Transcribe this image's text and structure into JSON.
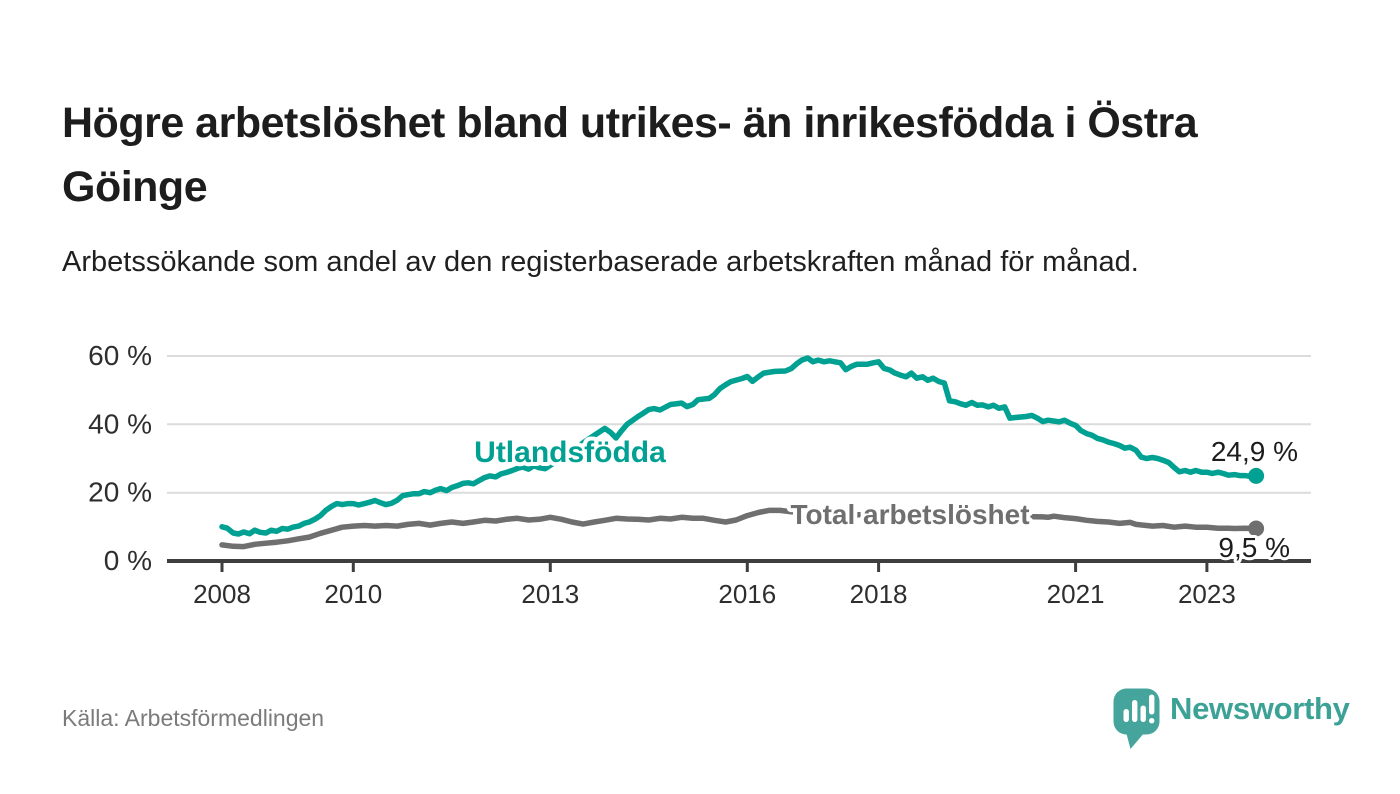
{
  "header": {
    "title": "Högre arbetslöshet bland utrikes- än inrikesfödda i Östra Göinge",
    "subtitle": "Arbetssökande som andel av den registerbaserade arbetskraften månad för månad."
  },
  "footer": {
    "source": "Källa: Arbetsförmedlingen",
    "brand": "Newsworthy"
  },
  "colors": {
    "foreign_born_line": "#00a192",
    "total_line": "#6f6f6f",
    "brand_teal": "#45a59c",
    "grid": "#dcdcdc",
    "axis": "#3e3e3e"
  },
  "chart_data": {
    "type": "line",
    "title": "Högre arbetslöshet bland utrikes- än inrikesfödda i Östra Göinge",
    "subtitle": "Arbetssökande som andel av den registerbaserade arbetskraften månad för månad.",
    "source": "Källa: Arbetsförmedlingen",
    "grid": true,
    "legend_position": "inline-labels",
    "x_axis": {
      "ticks": [
        2008,
        2010,
        2013,
        2016,
        2018,
        2021,
        2023
      ],
      "tick_labels": [
        "2008",
        "2010",
        "2013",
        "2016",
        "2018",
        "2021",
        "2023"
      ],
      "range_years": [
        2007.2,
        2024.6
      ]
    },
    "y_axis": {
      "ticks": [
        0,
        20,
        40,
        60
      ],
      "tick_labels": [
        "0 %",
        "20 %",
        "40 %",
        "60 %"
      ],
      "range": [
        0,
        62
      ],
      "unit": "%"
    },
    "series": [
      {
        "name": "Utlandsfödda",
        "color": "#00a192",
        "end_value": 24.9,
        "end_label": "24,9 %",
        "points": [
          [
            2008.0,
            10.0
          ],
          [
            2008.08,
            9.6
          ],
          [
            2008.17,
            8.2
          ],
          [
            2008.25,
            7.9
          ],
          [
            2008.33,
            8.5
          ],
          [
            2008.42,
            8.0
          ],
          [
            2008.5,
            9.0
          ],
          [
            2008.58,
            8.4
          ],
          [
            2008.67,
            8.2
          ],
          [
            2008.75,
            9.0
          ],
          [
            2008.83,
            8.7
          ],
          [
            2008.92,
            9.5
          ],
          [
            2009.0,
            9.3
          ],
          [
            2009.08,
            9.9
          ],
          [
            2009.17,
            10.2
          ],
          [
            2009.25,
            11.0
          ],
          [
            2009.33,
            11.4
          ],
          [
            2009.42,
            12.3
          ],
          [
            2009.5,
            13.3
          ],
          [
            2009.58,
            14.8
          ],
          [
            2009.67,
            16.0
          ],
          [
            2009.75,
            16.8
          ],
          [
            2009.83,
            16.5
          ],
          [
            2009.92,
            16.8
          ],
          [
            2010.0,
            16.8
          ],
          [
            2010.08,
            16.4
          ],
          [
            2010.17,
            16.8
          ],
          [
            2010.25,
            17.2
          ],
          [
            2010.33,
            17.7
          ],
          [
            2010.42,
            17.0
          ],
          [
            2010.5,
            16.5
          ],
          [
            2010.58,
            16.9
          ],
          [
            2010.67,
            17.8
          ],
          [
            2010.75,
            19.1
          ],
          [
            2010.83,
            19.4
          ],
          [
            2010.92,
            19.7
          ],
          [
            2011.0,
            19.7
          ],
          [
            2011.08,
            20.3
          ],
          [
            2011.17,
            20.0
          ],
          [
            2011.25,
            20.7
          ],
          [
            2011.33,
            21.2
          ],
          [
            2011.42,
            20.6
          ],
          [
            2011.5,
            21.5
          ],
          [
            2011.58,
            22.0
          ],
          [
            2011.67,
            22.7
          ],
          [
            2011.75,
            22.9
          ],
          [
            2011.83,
            22.6
          ],
          [
            2011.92,
            23.6
          ],
          [
            2012.0,
            24.4
          ],
          [
            2012.08,
            24.9
          ],
          [
            2012.17,
            24.6
          ],
          [
            2012.25,
            25.5
          ],
          [
            2012.33,
            25.9
          ],
          [
            2012.42,
            26.5
          ],
          [
            2012.5,
            27.1
          ],
          [
            2012.58,
            27.5
          ],
          [
            2012.67,
            26.9
          ],
          [
            2012.75,
            27.9
          ],
          [
            2012.83,
            27.3
          ],
          [
            2012.92,
            27.0
          ],
          [
            2013.0,
            28.0
          ],
          [
            2013.17,
            30.0
          ],
          [
            2013.33,
            32.2
          ],
          [
            2013.5,
            34.6
          ],
          [
            2013.67,
            36.8
          ],
          [
            2013.83,
            38.8
          ],
          [
            2013.92,
            37.6
          ],
          [
            2014.0,
            36.0
          ],
          [
            2014.08,
            38.0
          ],
          [
            2014.17,
            40.0
          ],
          [
            2014.33,
            42.2
          ],
          [
            2014.42,
            43.3
          ],
          [
            2014.5,
            44.3
          ],
          [
            2014.58,
            44.6
          ],
          [
            2014.67,
            44.2
          ],
          [
            2014.83,
            45.8
          ],
          [
            2015.0,
            46.2
          ],
          [
            2015.08,
            45.2
          ],
          [
            2015.17,
            45.8
          ],
          [
            2015.25,
            47.2
          ],
          [
            2015.42,
            47.6
          ],
          [
            2015.5,
            48.7
          ],
          [
            2015.58,
            50.4
          ],
          [
            2015.67,
            51.6
          ],
          [
            2015.75,
            52.5
          ],
          [
            2015.92,
            53.4
          ],
          [
            2016.0,
            54.0
          ],
          [
            2016.08,
            52.6
          ],
          [
            2016.17,
            53.9
          ],
          [
            2016.25,
            55.0
          ],
          [
            2016.42,
            55.5
          ],
          [
            2016.58,
            55.6
          ],
          [
            2016.67,
            56.3
          ],
          [
            2016.75,
            57.7
          ],
          [
            2016.83,
            58.8
          ],
          [
            2016.92,
            59.4
          ],
          [
            2017.0,
            58.3
          ],
          [
            2017.08,
            58.8
          ],
          [
            2017.17,
            58.3
          ],
          [
            2017.25,
            58.6
          ],
          [
            2017.42,
            58.0
          ],
          [
            2017.5,
            56.0
          ],
          [
            2017.58,
            56.9
          ],
          [
            2017.67,
            57.6
          ],
          [
            2017.83,
            57.6
          ],
          [
            2017.92,
            58.0
          ],
          [
            2018.0,
            58.3
          ],
          [
            2018.08,
            56.4
          ],
          [
            2018.17,
            55.9
          ],
          [
            2018.25,
            55.0
          ],
          [
            2018.33,
            54.4
          ],
          [
            2018.42,
            53.9
          ],
          [
            2018.5,
            55.0
          ],
          [
            2018.58,
            53.5
          ],
          [
            2018.67,
            53.9
          ],
          [
            2018.75,
            52.9
          ],
          [
            2018.83,
            53.5
          ],
          [
            2018.92,
            52.5
          ],
          [
            2019.0,
            52.1
          ],
          [
            2019.08,
            46.9
          ],
          [
            2019.17,
            46.6
          ],
          [
            2019.25,
            46.0
          ],
          [
            2019.33,
            45.6
          ],
          [
            2019.42,
            46.4
          ],
          [
            2019.5,
            45.6
          ],
          [
            2019.58,
            45.7
          ],
          [
            2019.67,
            45.1
          ],
          [
            2019.75,
            45.6
          ],
          [
            2019.83,
            44.7
          ],
          [
            2019.92,
            45.1
          ],
          [
            2020.0,
            41.8
          ],
          [
            2020.08,
            42.0
          ],
          [
            2020.25,
            42.3
          ],
          [
            2020.33,
            42.6
          ],
          [
            2020.42,
            41.8
          ],
          [
            2020.5,
            40.8
          ],
          [
            2020.58,
            41.2
          ],
          [
            2020.75,
            40.7
          ],
          [
            2020.83,
            41.2
          ],
          [
            2020.92,
            40.3
          ],
          [
            2021.0,
            39.7
          ],
          [
            2021.08,
            38.2
          ],
          [
            2021.17,
            37.3
          ],
          [
            2021.25,
            36.8
          ],
          [
            2021.33,
            35.9
          ],
          [
            2021.42,
            35.4
          ],
          [
            2021.5,
            34.8
          ],
          [
            2021.58,
            34.4
          ],
          [
            2021.67,
            33.8
          ],
          [
            2021.75,
            33.0
          ],
          [
            2021.83,
            33.3
          ],
          [
            2021.92,
            32.4
          ],
          [
            2022.0,
            30.4
          ],
          [
            2022.08,
            30.0
          ],
          [
            2022.17,
            30.3
          ],
          [
            2022.25,
            30.0
          ],
          [
            2022.33,
            29.5
          ],
          [
            2022.42,
            28.8
          ],
          [
            2022.5,
            27.4
          ],
          [
            2022.58,
            26.1
          ],
          [
            2022.67,
            26.5
          ],
          [
            2022.75,
            26.0
          ],
          [
            2022.83,
            26.5
          ],
          [
            2022.92,
            26.0
          ],
          [
            2023.0,
            26.0
          ],
          [
            2023.08,
            25.6
          ],
          [
            2023.17,
            26.0
          ],
          [
            2023.25,
            25.6
          ],
          [
            2023.33,
            25.1
          ],
          [
            2023.42,
            25.3
          ],
          [
            2023.5,
            25.0
          ],
          [
            2023.58,
            25.0
          ],
          [
            2023.67,
            24.7
          ],
          [
            2023.75,
            24.9
          ]
        ]
      },
      {
        "name": "Total arbetslöshet",
        "color": "#6f6f6f",
        "end_value": 9.5,
        "end_label": "9,5 %",
        "points": [
          [
            2008.0,
            4.7
          ],
          [
            2008.17,
            4.3
          ],
          [
            2008.33,
            4.2
          ],
          [
            2008.5,
            4.9
          ],
          [
            2008.67,
            5.2
          ],
          [
            2008.83,
            5.5
          ],
          [
            2009.0,
            5.9
          ],
          [
            2009.17,
            6.5
          ],
          [
            2009.33,
            7.0
          ],
          [
            2009.5,
            8.1
          ],
          [
            2009.67,
            9.0
          ],
          [
            2009.83,
            9.9
          ],
          [
            2010.0,
            10.2
          ],
          [
            2010.17,
            10.4
          ],
          [
            2010.33,
            10.2
          ],
          [
            2010.5,
            10.4
          ],
          [
            2010.67,
            10.2
          ],
          [
            2010.83,
            10.7
          ],
          [
            2011.0,
            11.0
          ],
          [
            2011.17,
            10.5
          ],
          [
            2011.33,
            11.0
          ],
          [
            2011.5,
            11.4
          ],
          [
            2011.67,
            11.0
          ],
          [
            2011.83,
            11.4
          ],
          [
            2012.0,
            11.9
          ],
          [
            2012.17,
            11.7
          ],
          [
            2012.33,
            12.2
          ],
          [
            2012.5,
            12.5
          ],
          [
            2012.67,
            12.0
          ],
          [
            2012.83,
            12.2
          ],
          [
            2013.0,
            12.8
          ],
          [
            2013.17,
            12.2
          ],
          [
            2013.33,
            11.4
          ],
          [
            2013.5,
            10.8
          ],
          [
            2013.67,
            11.4
          ],
          [
            2013.83,
            11.9
          ],
          [
            2014.0,
            12.5
          ],
          [
            2014.17,
            12.3
          ],
          [
            2014.33,
            12.2
          ],
          [
            2014.5,
            12.0
          ],
          [
            2014.67,
            12.5
          ],
          [
            2014.83,
            12.3
          ],
          [
            2015.0,
            12.8
          ],
          [
            2015.17,
            12.5
          ],
          [
            2015.33,
            12.5
          ],
          [
            2015.5,
            11.9
          ],
          [
            2015.67,
            11.4
          ],
          [
            2015.83,
            12.0
          ],
          [
            2016.0,
            13.3
          ],
          [
            2016.17,
            14.2
          ],
          [
            2016.33,
            14.8
          ],
          [
            2016.5,
            14.8
          ],
          [
            2016.67,
            14.4
          ],
          [
            2017.0,
            14.0
          ],
          [
            2017.33,
            13.7
          ],
          [
            2017.67,
            13.5
          ],
          [
            2018.0,
            13.8
          ],
          [
            2018.33,
            13.4
          ],
          [
            2018.67,
            13.1
          ],
          [
            2019.0,
            13.0
          ],
          [
            2019.33,
            12.8
          ],
          [
            2019.67,
            12.7
          ],
          [
            2020.0,
            13.2
          ],
          [
            2020.25,
            13.0
          ],
          [
            2020.5,
            12.9
          ],
          [
            2020.58,
            12.8
          ],
          [
            2020.67,
            13.1
          ],
          [
            2020.83,
            12.7
          ],
          [
            2021.0,
            12.4
          ],
          [
            2021.17,
            11.9
          ],
          [
            2021.33,
            11.6
          ],
          [
            2021.5,
            11.4
          ],
          [
            2021.67,
            11.0
          ],
          [
            2021.83,
            11.3
          ],
          [
            2021.92,
            10.7
          ],
          [
            2022.08,
            10.4
          ],
          [
            2022.17,
            10.2
          ],
          [
            2022.33,
            10.4
          ],
          [
            2022.5,
            9.9
          ],
          [
            2022.67,
            10.2
          ],
          [
            2022.83,
            9.9
          ],
          [
            2023.0,
            9.9
          ],
          [
            2023.17,
            9.6
          ],
          [
            2023.33,
            9.6
          ],
          [
            2023.42,
            9.5
          ],
          [
            2023.58,
            9.6
          ],
          [
            2023.75,
            9.5
          ]
        ]
      }
    ]
  }
}
